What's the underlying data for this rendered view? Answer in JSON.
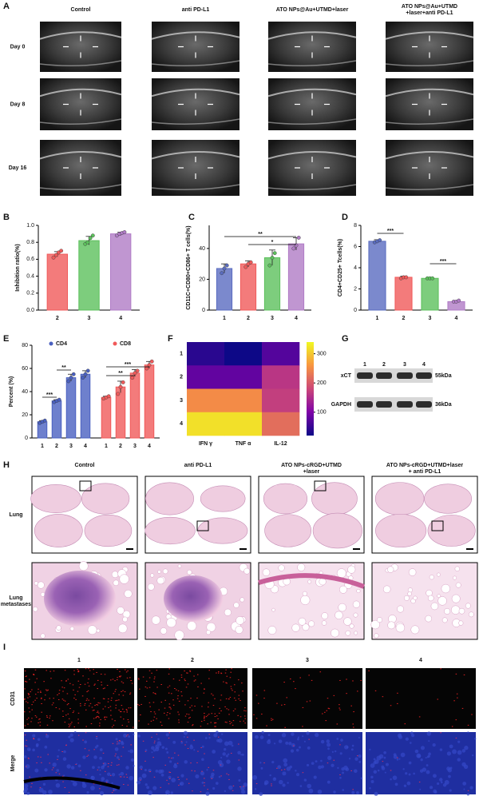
{
  "panel_labels": [
    "A",
    "B",
    "C",
    "D",
    "E",
    "F",
    "G",
    "H",
    "I"
  ],
  "panel_a": {
    "columns": [
      [
        "Control"
      ],
      [
        "anti PD-L1"
      ],
      [
        "ATO NPs@Au+UTMD+laser"
      ],
      [
        "ATO NPs@Au+UTMD",
        "+laser+anti PD-L1"
      ]
    ],
    "rows": [
      "Day 0",
      "Day 8",
      "Day 16"
    ]
  },
  "chart_data": [
    {
      "type": "bar",
      "ylabel": "Inhibition ratio(%)",
      "categories": [
        "2",
        "3",
        "4"
      ],
      "values": [
        0.66,
        0.82,
        0.9
      ],
      "errors": [
        0.03,
        0.05,
        0.02
      ],
      "points": [
        [
          0.62,
          0.65,
          0.68,
          0.7
        ],
        [
          0.78,
          0.8,
          0.85,
          0.88
        ],
        [
          0.88,
          0.9,
          0.91,
          0.92
        ]
      ],
      "colors": [
        "#f05a5a",
        "#5cc05c",
        "#b07cc6"
      ],
      "ylim": [
        0,
        1.0
      ],
      "yticks": [
        {
          "value": 0,
          "label": "0.0"
        },
        0.2,
        0.4,
        0.6,
        0.8,
        {
          "value": 1.0,
          "label": "1.0"
        }
      ]
    },
    {
      "type": "bar",
      "ylabel": "CD11C+CD80+CD86+ T cells(%)",
      "categories": [
        "1",
        "2",
        "3",
        "4"
      ],
      "values": [
        27,
        30,
        34,
        43
      ],
      "errors": [
        3,
        2,
        5,
        4
      ],
      "points": [
        [
          24,
          27,
          29
        ],
        [
          28,
          30,
          31
        ],
        [
          29,
          34,
          37
        ],
        [
          40,
          42,
          47
        ]
      ],
      "colors": [
        "#5a6cc0",
        "#f05a5a",
        "#5cc05c",
        "#b07cc6"
      ],
      "ylim": [
        0,
        55
      ],
      "yticks": [
        0,
        20,
        40
      ],
      "annotations": [
        "**",
        "*"
      ]
    },
    {
      "type": "bar",
      "ylabel": "CD4+CD25+ Tcells(%)",
      "categories": [
        "1",
        "2",
        "3",
        "4"
      ],
      "values": [
        6.5,
        3.1,
        3.0,
        0.8
      ],
      "errors": [
        0.15,
        0.1,
        0.05,
        0.08
      ],
      "points": [
        [
          6.4,
          6.5,
          6.6
        ],
        [
          3.0,
          3.1,
          3.1
        ],
        [
          3.0,
          3.0,
          3.0
        ],
        [
          0.8,
          0.8,
          0.9
        ]
      ],
      "colors": [
        "#5a6cc0",
        "#f05a5a",
        "#5cc05c",
        "#b07cc6"
      ],
      "ylim": [
        0,
        8
      ],
      "yticks": [
        0,
        2,
        4,
        6,
        8
      ],
      "annotations": [
        "***",
        "***"
      ]
    },
    {
      "type": "bar",
      "ylabel": "Percent (%)",
      "categories": [
        "1",
        "2",
        "3",
        "4"
      ],
      "series": [
        {
          "name": "CD4",
          "color": "#4a60c0",
          "values": [
            14,
            32,
            52,
            55
          ],
          "errors": [
            1,
            1,
            3,
            3
          ],
          "points": [
            [
              13,
              14,
              15
            ],
            [
              31,
              32,
              33
            ],
            [
              49,
              52,
              55
            ],
            [
              52,
              55,
              58
            ]
          ]
        },
        {
          "name": "CD8",
          "color": "#f05a5a",
          "values": [
            35,
            44,
            56,
            63
          ],
          "errors": [
            1,
            5,
            3,
            3
          ],
          "points": [
            [
              34,
              35,
              36
            ],
            [
              38,
              44,
              48
            ],
            [
              52,
              56,
              58
            ],
            [
              60,
              63,
              66
            ]
          ]
        }
      ],
      "ylim": [
        0,
        80
      ],
      "yticks": [
        0,
        20,
        40,
        60,
        80
      ],
      "annotations": [
        "***",
        "**",
        "***",
        "**"
      ]
    },
    {
      "type": "heatmap",
      "rows": [
        "1",
        "2",
        "3",
        "4"
      ],
      "columns": [
        "IFN γ",
        "TNF α",
        "IL-12"
      ],
      "values": [
        [
          40,
          20,
          70
        ],
        [
          80,
          80,
          160
        ],
        [
          250,
          250,
          170
        ],
        [
          320,
          320,
          220
        ]
      ],
      "clim": [
        20,
        340
      ],
      "colorbar_ticks": [
        100,
        200,
        300
      ]
    }
  ],
  "panel_g": {
    "lanes": [
      "1",
      "2",
      "3",
      "4"
    ],
    "bands": [
      "xCT",
      "GAPDH"
    ],
    "sizes": [
      "55kDa",
      "36kDa"
    ]
  },
  "panel_h": {
    "columns": [
      [
        "Control"
      ],
      [
        "anti PD-L1"
      ],
      [
        "ATO NPs-cRGD+UTMD",
        "+laser"
      ],
      [
        "ATO NPs-cRGD+UTMD+laser",
        "+ anti PD-L1"
      ]
    ],
    "rows": [
      [
        "Lung"
      ],
      [
        "Lung",
        "metastases"
      ]
    ]
  },
  "panel_i": {
    "columns": [
      "1",
      "2",
      "3",
      "4"
    ],
    "rows": [
      "CD31",
      "Merge"
    ]
  }
}
